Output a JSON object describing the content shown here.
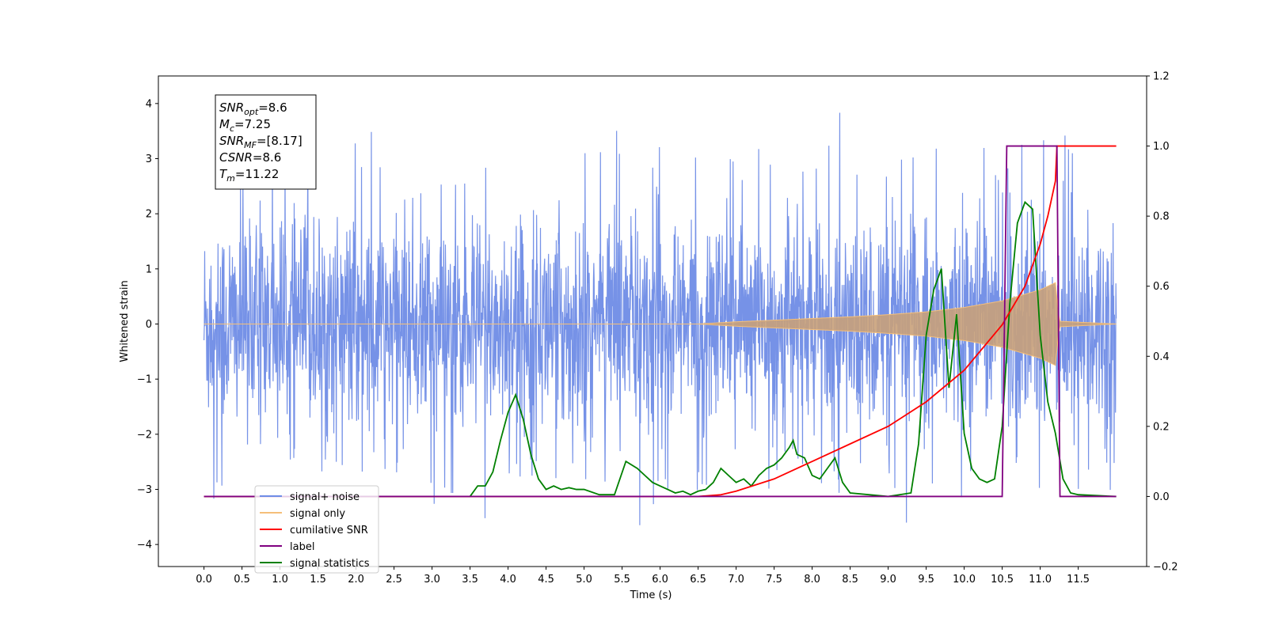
{
  "chart_data": {
    "type": "line",
    "xlabel": "Time (s)",
    "ylabel": "Whitened strain",
    "xlim": [
      -0.6,
      12.4
    ],
    "ylim": [
      -4.4,
      4.5
    ],
    "y2lim": [
      -0.2,
      1.2
    ],
    "grid": false,
    "legend_placement": "lower-left",
    "x_ticks": [
      "0.0",
      "0.5",
      "1.0",
      "1.5",
      "2.0",
      "2.5",
      "3.0",
      "3.5",
      "4.0",
      "4.5",
      "5.0",
      "5.5",
      "6.0",
      "6.5",
      "7.0",
      "7.5",
      "8.0",
      "8.5",
      "9.0",
      "9.5",
      "10.0",
      "10.5",
      "11.0",
      "11.5"
    ],
    "y_ticks": [
      "4",
      "3",
      "2",
      "1",
      "0",
      "−1",
      "−2",
      "−3",
      "−4"
    ],
    "y2_ticks": [
      "1.2",
      "1.0",
      "0.8",
      "0.6",
      "0.4",
      "0.2",
      "0.0",
      "−0.2"
    ],
    "annotation": {
      "lines": [
        {
          "base": "SNR",
          "sub": "opt",
          "rest": "=8.6"
        },
        {
          "base": "M",
          "sub": "c",
          "rest": "=7.25"
        },
        {
          "base": "SNR",
          "sub": "MF",
          "rest": "=[8.17]"
        },
        {
          "base": "CSNR",
          "sub": "",
          "rest": "=8.6"
        },
        {
          "base": "T",
          "sub": "m",
          "rest": "=11.22"
        }
      ]
    },
    "series": [
      {
        "name": "signal+ noise",
        "color": "#6f8ce6",
        "axis": "left",
        "x_range": [
          0.0,
          12.0
        ],
        "envelope_upper": [
          [
            0.0,
            3.3
          ],
          [
            0.5,
            3.0
          ],
          [
            1.0,
            3.1
          ],
          [
            1.5,
            3.2
          ],
          [
            2.0,
            3.3
          ],
          [
            2.5,
            4.1
          ],
          [
            3.0,
            3.1
          ],
          [
            3.5,
            3.1
          ],
          [
            4.0,
            3.5
          ],
          [
            4.5,
            3.3
          ],
          [
            5.0,
            3.3
          ],
          [
            5.5,
            3.7
          ],
          [
            6.0,
            3.4
          ],
          [
            6.5,
            3.5
          ],
          [
            7.0,
            3.3
          ],
          [
            7.5,
            3.4
          ],
          [
            7.8,
            4.1
          ],
          [
            8.0,
            3.2
          ],
          [
            8.3,
            4.1
          ],
          [
            8.5,
            3.3
          ],
          [
            9.0,
            3.3
          ],
          [
            9.5,
            3.3
          ],
          [
            10.0,
            3.4
          ],
          [
            10.5,
            3.4
          ],
          [
            11.0,
            3.4
          ],
          [
            11.5,
            3.5
          ],
          [
            12.0,
            3.4
          ]
        ],
        "envelope_lower": [
          [
            0.0,
            -3.7
          ],
          [
            0.5,
            -2.6
          ],
          [
            1.0,
            -2.9
          ],
          [
            1.5,
            -2.7
          ],
          [
            2.0,
            -2.8
          ],
          [
            2.5,
            -3.0
          ],
          [
            3.0,
            -3.5
          ],
          [
            3.5,
            -4.0
          ],
          [
            4.0,
            -3.0
          ],
          [
            4.5,
            -3.0
          ],
          [
            5.0,
            -3.0
          ],
          [
            5.5,
            -3.3
          ],
          [
            5.8,
            -3.8
          ],
          [
            6.0,
            -3.0
          ],
          [
            6.5,
            -3.2
          ],
          [
            7.0,
            -3.5
          ],
          [
            7.5,
            -3.1
          ],
          [
            8.0,
            -3.1
          ],
          [
            8.5,
            -3.2
          ],
          [
            9.0,
            -3.3
          ],
          [
            9.2,
            -3.8
          ],
          [
            9.5,
            -3.7
          ],
          [
            10.0,
            -3.1
          ],
          [
            10.5,
            -3.2
          ],
          [
            10.8,
            -3.4
          ],
          [
            11.0,
            -3.3
          ],
          [
            11.5,
            -3.1
          ],
          [
            12.0,
            -3.0
          ]
        ]
      },
      {
        "name": "signal only",
        "color": "#f5bf79",
        "axis": "left",
        "x_range": [
          0.0,
          12.0
        ],
        "amplitude_envelope": [
          [
            0.0,
            0.0
          ],
          [
            6.5,
            0.0
          ],
          [
            7.0,
            0.04
          ],
          [
            7.5,
            0.07
          ],
          [
            8.0,
            0.1
          ],
          [
            8.5,
            0.13
          ],
          [
            9.0,
            0.17
          ],
          [
            9.5,
            0.22
          ],
          [
            10.0,
            0.3
          ],
          [
            10.5,
            0.42
          ],
          [
            11.0,
            0.62
          ],
          [
            11.2,
            0.75
          ],
          [
            11.25,
            0.05
          ],
          [
            12.0,
            0.0
          ]
        ]
      },
      {
        "name": "cumilative SNR",
        "color": "#ff0000",
        "axis": "right",
        "x": [
          0.0,
          6.5,
          6.8,
          7.0,
          7.5,
          8.0,
          8.5,
          9.0,
          9.5,
          10.0,
          10.5,
          10.8,
          11.0,
          11.1,
          11.2,
          11.22,
          11.25,
          12.0
        ],
        "y": [
          0.0,
          0.0,
          0.005,
          0.015,
          0.05,
          0.1,
          0.15,
          0.2,
          0.27,
          0.36,
          0.49,
          0.6,
          0.72,
          0.8,
          0.9,
          1.0,
          1.0,
          1.0
        ]
      },
      {
        "name": "label",
        "color": "#800080",
        "axis": "right",
        "x": [
          0.0,
          10.5,
          10.56,
          11.22,
          11.26,
          12.0
        ],
        "y": [
          0.0,
          0.0,
          1.0,
          1.0,
          0.0,
          0.0
        ]
      },
      {
        "name": "signal statistics",
        "color": "#008000",
        "axis": "right",
        "x": [
          0.0,
          3.0,
          3.5,
          3.6,
          3.7,
          3.8,
          3.9,
          4.0,
          4.1,
          4.2,
          4.3,
          4.4,
          4.5,
          4.6,
          4.7,
          4.8,
          4.9,
          5.0,
          5.2,
          5.4,
          5.55,
          5.7,
          5.8,
          5.9,
          6.0,
          6.1,
          6.2,
          6.3,
          6.4,
          6.5,
          6.6,
          6.7,
          6.8,
          6.9,
          7.0,
          7.1,
          7.2,
          7.3,
          7.4,
          7.5,
          7.6,
          7.7,
          7.75,
          7.8,
          7.9,
          8.0,
          8.1,
          8.2,
          8.3,
          8.4,
          8.5,
          9.0,
          9.3,
          9.4,
          9.5,
          9.6,
          9.7,
          9.8,
          9.9,
          10.0,
          10.1,
          10.2,
          10.3,
          10.4,
          10.5,
          10.6,
          10.7,
          10.8,
          10.9,
          11.0,
          11.1,
          11.2,
          11.3,
          11.4,
          11.5,
          12.0
        ],
        "y": [
          0.0,
          0.0,
          0.0,
          0.03,
          0.03,
          0.07,
          0.16,
          0.24,
          0.29,
          0.22,
          0.12,
          0.05,
          0.02,
          0.03,
          0.02,
          0.025,
          0.02,
          0.02,
          0.005,
          0.005,
          0.1,
          0.08,
          0.06,
          0.04,
          0.03,
          0.02,
          0.01,
          0.015,
          0.005,
          0.015,
          0.02,
          0.04,
          0.08,
          0.06,
          0.04,
          0.05,
          0.03,
          0.06,
          0.08,
          0.09,
          0.11,
          0.14,
          0.16,
          0.12,
          0.11,
          0.06,
          0.05,
          0.08,
          0.11,
          0.04,
          0.01,
          0.0,
          0.01,
          0.15,
          0.46,
          0.59,
          0.65,
          0.31,
          0.52,
          0.18,
          0.08,
          0.05,
          0.04,
          0.05,
          0.2,
          0.55,
          0.78,
          0.84,
          0.82,
          0.46,
          0.27,
          0.18,
          0.05,
          0.01,
          0.005,
          0.0
        ]
      }
    ],
    "legend": [
      {
        "label": "signal+ noise",
        "color": "#6f8ce6"
      },
      {
        "label": "signal only",
        "color": "#f5bf79"
      },
      {
        "label": "cumilative SNR",
        "color": "#ff0000"
      },
      {
        "label": "label",
        "color": "#800080"
      },
      {
        "label": "signal statistics",
        "color": "#008000"
      }
    ]
  }
}
